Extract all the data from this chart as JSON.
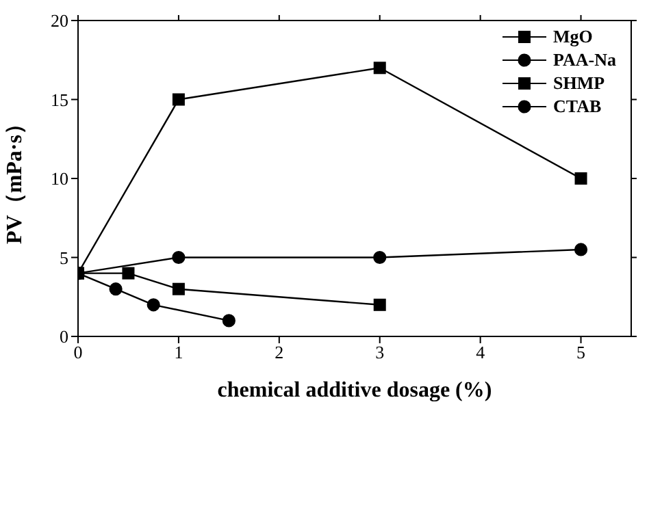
{
  "chart_data": {
    "type": "line",
    "xlabel": "chemical additive dosage (%)",
    "ylabel": "PV（mPa·s）",
    "xlim": [
      0,
      5.5
    ],
    "xticks": [
      0,
      1,
      2,
      3,
      4,
      5
    ],
    "ylim": [
      0,
      20
    ],
    "yticks": [
      0,
      5,
      10,
      15,
      20
    ],
    "legend": "top right",
    "line_style": "solid",
    "series": [
      {
        "name": "MgO",
        "color": "#000000",
        "marker": "square",
        "x": [
          0,
          1,
          3,
          5
        ],
        "values": [
          4,
          15,
          17,
          10
        ]
      },
      {
        "name": "PAA-Na",
        "color": "#000000",
        "marker": "circle",
        "x": [
          0,
          0.375,
          0.75,
          1.5
        ],
        "values": [
          4,
          3,
          2,
          1
        ]
      },
      {
        "name": "SHMP",
        "color": "#000000",
        "marker": "square",
        "x": [
          0,
          0.5,
          1,
          3
        ],
        "values": [
          4,
          4,
          3,
          2
        ]
      },
      {
        "name": "CTAB",
        "color": "#000000",
        "marker": "circle",
        "x": [
          0,
          1,
          3,
          5
        ],
        "values": [
          4,
          5,
          5,
          5.5
        ]
      }
    ]
  }
}
